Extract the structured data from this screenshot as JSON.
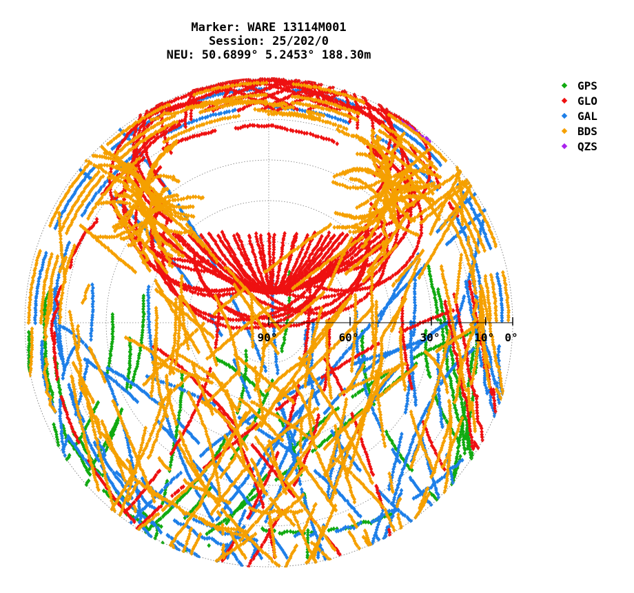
{
  "chart_data": {
    "type": "scatter",
    "subtype": "polar-skyplot",
    "title_lines": [
      "Marker: WARE 13114M001",
      "Session: 25/202/0",
      "NEU: 50.6899° 5.2453° 188.30m"
    ],
    "elevation_ticks": [
      "90°",
      "60°",
      "30°",
      "10°",
      "0°"
    ],
    "elevation_tick_values": [
      90,
      60,
      30,
      10,
      0
    ],
    "grid": true,
    "legend_position": "top-right",
    "series": [
      {
        "name": "GPS",
        "color": "#11aa11"
      },
      {
        "name": "GLO",
        "color": "#ee1111"
      },
      {
        "name": "GAL",
        "color": "#1e7fe8"
      },
      {
        "name": "BDS",
        "color": "#f5a000"
      },
      {
        "name": "QZS",
        "color": "#aa22ee"
      }
    ]
  }
}
